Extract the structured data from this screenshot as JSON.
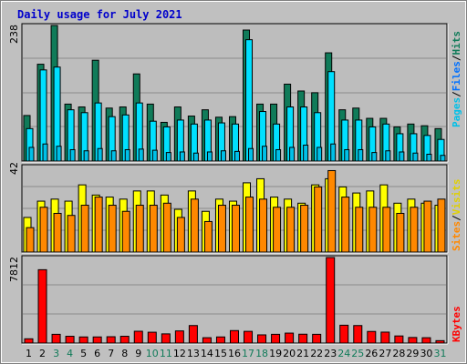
{
  "colors": {
    "background": "#c0c0c0",
    "plot_bg": "#bdbdbd",
    "title": "#0000cc",
    "hits": "#107b59",
    "files": "#00e0ff",
    "pages": "#00c0e8",
    "visits": "#ffff00",
    "sites": "#ff8800",
    "kbytes": "#ff0000",
    "weekend_day": "#107b59",
    "weekday_day": "#000000"
  },
  "chart_data": [
    {
      "type": "bar",
      "title": "Daily usage for July 2021",
      "ylim": [
        0,
        238
      ],
      "ymax_label": "238",
      "categories": [
        "1",
        "2",
        "3",
        "4",
        "5",
        "6",
        "7",
        "8",
        "9",
        "10",
        "11",
        "12",
        "13",
        "14",
        "15",
        "16",
        "17",
        "18",
        "19",
        "20",
        "21",
        "22",
        "23",
        "24",
        "25",
        "26",
        "27",
        "28",
        "29",
        "30",
        "31"
      ],
      "weekend_days": [
        "3",
        "4",
        "10",
        "11",
        "17",
        "18",
        "24",
        "25",
        "31"
      ],
      "legend": {
        "hits": "Hits",
        "files": "Files",
        "pages": "Pages",
        "sep": "/"
      },
      "series": [
        {
          "name": "Hits",
          "values": [
            80,
            170,
            238,
            100,
            95,
            177,
            93,
            95,
            153,
            100,
            68,
            95,
            79,
            90,
            77,
            78,
            230,
            100,
            100,
            135,
            123,
            120,
            190,
            90,
            93,
            75,
            75,
            60,
            65,
            62,
            57
          ]
        },
        {
          "name": "Files",
          "values": [
            57,
            160,
            165,
            90,
            85,
            102,
            78,
            81,
            102,
            70,
            60,
            72,
            65,
            72,
            67,
            65,
            213,
            87,
            65,
            95,
            95,
            85,
            157,
            72,
            72,
            60,
            65,
            48,
            48,
            45,
            38
          ]
        },
        {
          "name": "Pages",
          "values": [
            24,
            30,
            26,
            20,
            18,
            22,
            18,
            20,
            21,
            19,
            15,
            16,
            14,
            16,
            18,
            17,
            22,
            26,
            20,
            24,
            28,
            24,
            30,
            20,
            20,
            15,
            18,
            16,
            14,
            12,
            10
          ]
        }
      ]
    },
    {
      "type": "bar",
      "ylim": [
        0,
        42
      ],
      "ymax_label": "42",
      "categories": [
        "1",
        "2",
        "3",
        "4",
        "5",
        "6",
        "7",
        "8",
        "9",
        "10",
        "11",
        "12",
        "13",
        "14",
        "15",
        "16",
        "17",
        "18",
        "19",
        "20",
        "21",
        "22",
        "23",
        "24",
        "25",
        "26",
        "27",
        "28",
        "29",
        "30",
        "31"
      ],
      "legend": {
        "visits": "Visits",
        "sites": "Sites",
        "sep": "/"
      },
      "series": [
        {
          "name": "Visits",
          "values": [
            17,
            25,
            26,
            25,
            33,
            28,
            27,
            26,
            30,
            30,
            28,
            21,
            30,
            20,
            26,
            25,
            34,
            36,
            27,
            26,
            24,
            33,
            36,
            32,
            29,
            30,
            33,
            24,
            26,
            24,
            23
          ]
        },
        {
          "name": "Sites",
          "values": [
            12,
            22,
            19,
            18,
            23,
            27,
            23,
            20,
            23,
            23,
            24,
            17,
            26,
            15,
            23,
            23,
            27,
            26,
            22,
            22,
            23,
            32,
            40,
            27,
            22,
            22,
            22,
            19,
            22,
            25,
            26
          ]
        }
      ]
    },
    {
      "type": "bar",
      "ylim": [
        0,
        7812
      ],
      "ymax_label": "7812",
      "categories": [
        "1",
        "2",
        "3",
        "4",
        "5",
        "6",
        "7",
        "8",
        "9",
        "10",
        "11",
        "12",
        "13",
        "14",
        "15",
        "16",
        "17",
        "18",
        "19",
        "20",
        "21",
        "22",
        "23",
        "24",
        "25",
        "26",
        "27",
        "28",
        "29",
        "30",
        "31"
      ],
      "legend": {
        "kbytes": "KBytes"
      },
      "series": [
        {
          "name": "KBytes",
          "values": [
            390,
            6700,
            800,
            620,
            560,
            560,
            580,
            620,
            1080,
            990,
            840,
            1110,
            1600,
            490,
            560,
            1140,
            1070,
            750,
            800,
            910,
            810,
            800,
            7812,
            1630,
            1600,
            1060,
            1000,
            650,
            510,
            490,
            220
          ]
        }
      ]
    }
  ]
}
